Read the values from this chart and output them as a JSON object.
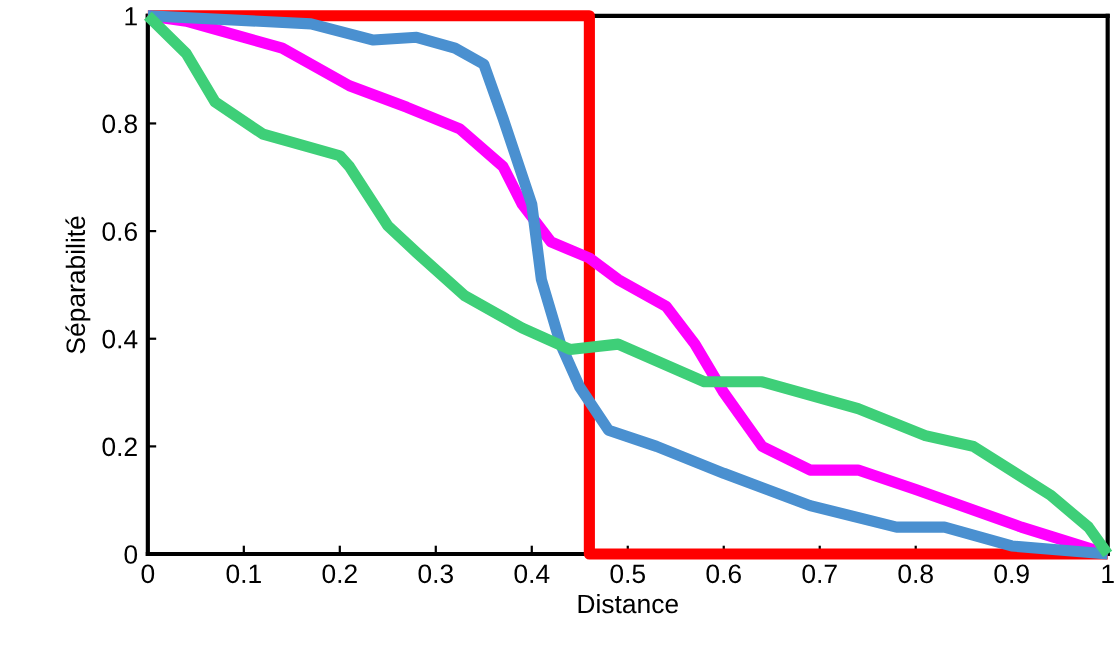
{
  "chart_data": {
    "type": "line",
    "xlabel": "Distance",
    "ylabel": "Séparabilité",
    "xlim": [
      0,
      1
    ],
    "ylim": [
      0,
      1
    ],
    "xticks": [
      0,
      0.1,
      0.2,
      0.3,
      0.4,
      0.5,
      0.6,
      0.7,
      0.8,
      0.9,
      1
    ],
    "yticks": [
      0,
      0.2,
      0.4,
      0.6,
      0.8,
      1
    ],
    "grid": false,
    "legend": false,
    "marker": "none",
    "line_style": "solid",
    "series": [
      {
        "color": "#ff0000",
        "x": [
          0,
          0.46,
          0.46,
          1
        ],
        "values": [
          1,
          1,
          0,
          0
        ]
      },
      {
        "color": "#ff00ff",
        "x": [
          0,
          0.04,
          0.14,
          0.21,
          0.27,
          0.325,
          0.37,
          0.39,
          0.42,
          0.46,
          0.49,
          0.54,
          0.57,
          0.6,
          0.64,
          0.69,
          0.74,
          0.8,
          0.91,
          1
        ],
        "values": [
          1,
          0.99,
          0.94,
          0.87,
          0.83,
          0.79,
          0.72,
          0.65,
          0.58,
          0.55,
          0.51,
          0.46,
          0.39,
          0.3,
          0.2,
          0.156,
          0.156,
          0.12,
          0.05,
          0
        ]
      },
      {
        "color": "#4a90d0",
        "x": [
          0,
          0.17,
          0.235,
          0.28,
          0.32,
          0.35,
          0.37,
          0.4,
          0.41,
          0.43,
          0.45,
          0.48,
          0.53,
          0.6,
          0.69,
          0.78,
          0.83,
          0.9,
          1
        ],
        "values": [
          1,
          0.985,
          0.955,
          0.96,
          0.94,
          0.91,
          0.81,
          0.65,
          0.51,
          0.39,
          0.31,
          0.23,
          0.2,
          0.15,
          0.09,
          0.05,
          0.05,
          0.015,
          0
        ]
      },
      {
        "color": "#3ecf78",
        "x": [
          0,
          0.04,
          0.07,
          0.12,
          0.2,
          0.21,
          0.25,
          0.28,
          0.33,
          0.39,
          0.44,
          0.49,
          0.58,
          0.64,
          0.74,
          0.81,
          0.86,
          0.94,
          0.98,
          1
        ],
        "values": [
          1,
          0.93,
          0.84,
          0.78,
          0.74,
          0.72,
          0.61,
          0.56,
          0.48,
          0.42,
          0.38,
          0.39,
          0.32,
          0.32,
          0.27,
          0.22,
          0.2,
          0.11,
          0.05,
          0
        ]
      }
    ]
  }
}
